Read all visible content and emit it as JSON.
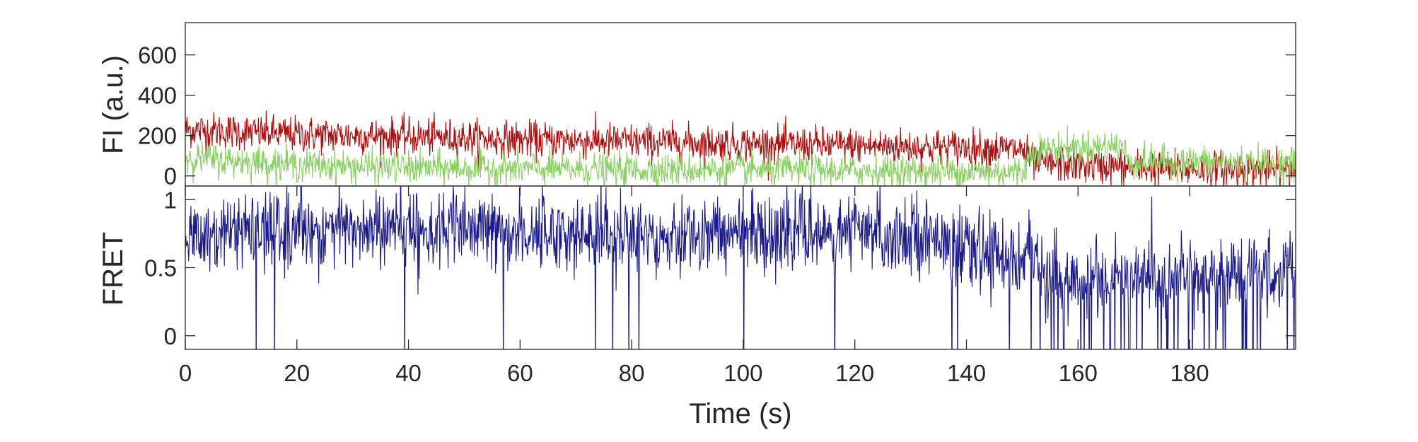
{
  "chart_data": [
    {
      "type": "line",
      "panel": "top",
      "ylabel": "FI (a.u.)",
      "xlabel": "",
      "xlim": [
        0,
        199
      ],
      "ylim": [
        -50,
        760
      ],
      "yticks": [
        0,
        200,
        400,
        600
      ],
      "ytick_labels": [
        "0",
        "200",
        "400",
        "600"
      ],
      "xticks": [],
      "grid": false,
      "legend": "none",
      "series": [
        {
          "color": "#b00c0c",
          "sample_interval_s": 0.1,
          "trend_x": [
            0,
            20,
            40,
            60,
            80,
            100,
            120,
            140,
            150,
            152,
            170,
            199
          ],
          "trend_y": [
            230,
            205,
            195,
            180,
            170,
            160,
            150,
            140,
            130,
            65,
            40,
            30
          ],
          "noise_sd": 45
        },
        {
          "color": "#88d060",
          "sample_interval_s": 0.1,
          "trend_x": [
            0,
            20,
            40,
            60,
            80,
            100,
            120,
            140,
            150,
            152,
            168,
            169,
            199
          ],
          "trend_y": [
            90,
            55,
            40,
            35,
            30,
            30,
            25,
            20,
            20,
            130,
            150,
            70,
            60
          ],
          "noise_sd": 40
        }
      ]
    },
    {
      "type": "line",
      "panel": "bottom",
      "ylabel": "FRET",
      "xlabel": "Time (s)",
      "xlim": [
        0,
        199
      ],
      "ylim": [
        -0.1,
        1.1
      ],
      "yticks": [
        0,
        0.5,
        1
      ],
      "ytick_labels": [
        "0",
        "0.5",
        "1"
      ],
      "xticks": [
        0,
        20,
        40,
        60,
        80,
        100,
        120,
        140,
        160,
        180
      ],
      "xtick_labels": [
        "0",
        "20",
        "40",
        "60",
        "80",
        "100",
        "120",
        "140",
        "160",
        "180"
      ],
      "grid": false,
      "legend": "none",
      "series": [
        {
          "color": "#1a1a8c",
          "sample_interval_s": 0.1,
          "trend_x": [
            0,
            20,
            40,
            60,
            80,
            100,
            120,
            137,
            138,
            152,
            153,
            199
          ],
          "trend_y": [
            0.72,
            0.78,
            0.78,
            0.76,
            0.74,
            0.76,
            0.75,
            0.74,
            0.6,
            0.6,
            0.4,
            0.45
          ],
          "noise_sd": 0.14
        }
      ]
    }
  ]
}
